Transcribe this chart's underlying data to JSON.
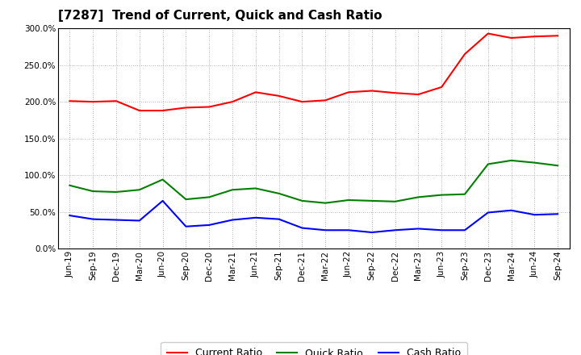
{
  "title": "[7287]  Trend of Current, Quick and Cash Ratio",
  "labels": [
    "Jun-19",
    "Sep-19",
    "Dec-19",
    "Mar-20",
    "Jun-20",
    "Sep-20",
    "Dec-20",
    "Mar-21",
    "Jun-21",
    "Sep-21",
    "Dec-21",
    "Mar-22",
    "Jun-22",
    "Sep-22",
    "Dec-22",
    "Mar-23",
    "Jun-23",
    "Sep-23",
    "Dec-23",
    "Mar-24",
    "Jun-24",
    "Sep-24"
  ],
  "current_ratio": [
    201,
    200,
    201,
    188,
    188,
    192,
    193,
    200,
    213,
    208,
    200,
    202,
    213,
    215,
    212,
    210,
    220,
    265,
    293,
    287,
    289,
    290
  ],
  "quick_ratio": [
    86,
    78,
    77,
    80,
    94,
    67,
    70,
    80,
    82,
    75,
    65,
    62,
    66,
    65,
    64,
    70,
    73,
    74,
    115,
    120,
    117,
    113
  ],
  "cash_ratio": [
    45,
    40,
    39,
    38,
    65,
    30,
    32,
    39,
    42,
    40,
    28,
    25,
    25,
    22,
    25,
    27,
    25,
    25,
    49,
    52,
    46,
    47
  ],
  "current_color": "#FF0000",
  "quick_color": "#008000",
  "cash_color": "#0000FF",
  "ylim": [
    0,
    300
  ],
  "yticks": [
    0,
    50,
    100,
    150,
    200,
    250,
    300
  ],
  "background_color": "#FFFFFF",
  "grid_color": "#999999",
  "title_fontsize": 11,
  "tick_fontsize": 7.5
}
